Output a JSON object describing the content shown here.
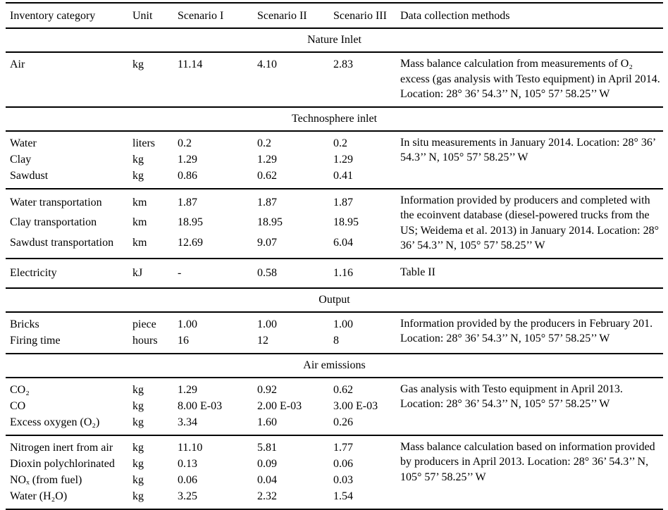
{
  "table": {
    "columns": [
      "Inventory category",
      "Unit",
      "Scenario I",
      "Scenario II",
      "Scenario III",
      "Data collection methods"
    ],
    "text_color": "#000000",
    "background_color": "#ffffff",
    "sections": [
      {
        "name": "nature-inlet",
        "title": "Nature Inlet",
        "groups": [
          {
            "name": "air",
            "rows": [
              {
                "category": "Air",
                "unit": "kg",
                "s1": "11.14",
                "s2": "4.10",
                "s3": "2.83"
              }
            ],
            "method": "Mass balance calculation from measurements of O₂ excess (gas analysis with Testo equipment) in April 2014. Location: 28° 36’ 54.3’’ N, 105° 57’ 58.25’’ W"
          }
        ]
      },
      {
        "name": "technosphere-inlet",
        "title": "Technosphere inlet",
        "groups": [
          {
            "name": "raw-materials",
            "rows": [
              {
                "category": "Water",
                "unit": "liters",
                "s1": "0.2",
                "s2": "0.2",
                "s3": "0.2"
              },
              {
                "category": "Clay",
                "unit": "kg",
                "s1": "1.29",
                "s2": "1.29",
                "s3": "1.29"
              },
              {
                "category": "Sawdust",
                "unit": "kg",
                "s1": "0.86",
                "s2": "0.62",
                "s3": "0.41"
              }
            ],
            "method": "In situ measurements in January 2014. Location: 28° 36’ 54.3’’ N, 105° 57’ 58.25’’ W"
          },
          {
            "name": "transportation",
            "rows": [
              {
                "category": "Water transportation",
                "unit": "km",
                "s1": "1.87",
                "s2": "1.87",
                "s3": "1.87"
              },
              {
                "category": "Clay transportation",
                "unit": "km",
                "s1": "18.95",
                "s2": "18.95",
                "s3": "18.95"
              },
              {
                "category": "Sawdust transportation",
                "unit": "km",
                "s1": "12.69",
                "s2": "9.07",
                "s3": "6.04"
              }
            ],
            "method": "Information provided by producers and completed with the ecoinvent database (diesel-powered trucks from the US; Weidema et al. 2013) in January 2014. Location: 28° 36’ 54.3’’ N, 105° 57’ 58.25’’ W"
          },
          {
            "name": "electricity",
            "rows": [
              {
                "category": "Electricity",
                "unit": "kJ",
                "s1": "-",
                "s2": "0.58",
                "s3": "1.16"
              }
            ],
            "method": "Table II"
          }
        ]
      },
      {
        "name": "output",
        "title": "Output",
        "groups": [
          {
            "name": "products",
            "rows": [
              {
                "category": "Bricks",
                "unit": "piece",
                "s1": "1.00",
                "s2": "1.00",
                "s3": "1.00"
              },
              {
                "category": "Firing time",
                "unit": "hours",
                "s1": "16",
                "s2": "12",
                "s3": "8"
              }
            ],
            "method": "Information provided by the producers in February 201. Location: 28° 36’ 54.3’’ N, 105° 57’ 58.25’’ W"
          }
        ]
      },
      {
        "name": "air-emissions",
        "title": "Air emissions",
        "groups": [
          {
            "name": "combustion-gases",
            "rows": [
              {
                "category": "CO₂",
                "unit": "kg",
                "s1": "1.29",
                "s2": "0.92",
                "s3": "0.62"
              },
              {
                "category": "CO",
                "unit": "kg",
                "s1": "8.00 E-03",
                "s2": "2.00 E-03",
                "s3": "3.00 E-03"
              },
              {
                "category": "Excess oxygen (O₂)",
                "unit": "kg",
                "s1": "3.34",
                "s2": "1.60",
                "s3": "0.26"
              }
            ],
            "method": "Gas analysis with Testo equipment in April 2013. Location: 28° 36’ 54.3’’ N, 105° 57’ 58.25’’ W"
          },
          {
            "name": "other-emissions",
            "rows": [
              {
                "category": "Nitrogen inert from air",
                "unit": "kg",
                "s1": "11.10",
                "s2": "5.81",
                "s3": "1.77"
              },
              {
                "category": "Dioxin polychlorinated",
                "unit": "kg",
                "s1": "0.13",
                "s2": "0.09",
                "s3": "0.06"
              },
              {
                "category": "NOₓ (from fuel)",
                "unit": "kg",
                "s1": "0.06",
                "s2": "0.04",
                "s3": "0.03"
              },
              {
                "category": "Water (H₂O)",
                "unit": "kg",
                "s1": "3.25",
                "s2": "2.32",
                "s3": "1.54"
              }
            ],
            "method": "Mass balance calculation based on information provided by producers in April 2013. Location: 28° 36’ 54.3’’ N, 105° 57’ 58.25’’ W"
          }
        ]
      }
    ]
  }
}
